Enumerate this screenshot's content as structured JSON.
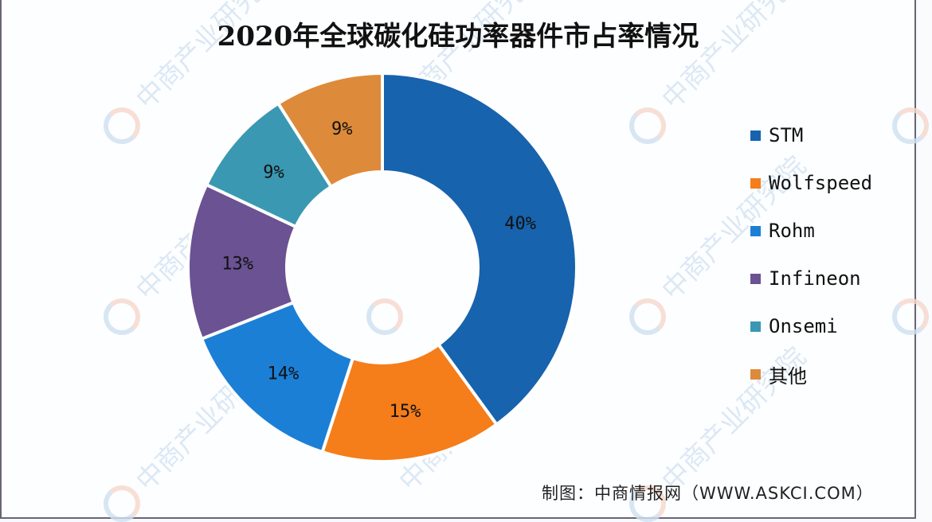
{
  "chart_data": {
    "type": "pie",
    "subtype": "donut",
    "title": "2020年全球碳化硅功率器件市占率情况",
    "categories": [
      "STM",
      "Wolfspeed",
      "Rohm",
      "Infineon",
      "Onsemi",
      "其他"
    ],
    "values": [
      40,
      15,
      14,
      13,
      9,
      9
    ],
    "labels": [
      "40%",
      "15%",
      "14%",
      "13%",
      "9%",
      "9%"
    ],
    "colors": [
      "#1763ad",
      "#f57d1a",
      "#1b7fd6",
      "#6a5293",
      "#3a98b2",
      "#dd8a3a"
    ],
    "unit": "%",
    "legend_position": "right",
    "start_angle": "12 o'clock, clockwise"
  },
  "title": "2020年全球碳化硅功率器件市占率情况",
  "legend": [
    {
      "label": "STM",
      "color": "#1763ad"
    },
    {
      "label": "Wolfspeed",
      "color": "#f57d1a"
    },
    {
      "label": "Rohm",
      "color": "#1b7fd6"
    },
    {
      "label": "Infineon",
      "color": "#6a5293"
    },
    {
      "label": "Onsemi",
      "color": "#3a98b2"
    },
    {
      "label": "其他",
      "color": "#dd8a3a"
    }
  ],
  "source": "制图：中商情报网（WWW.ASKCI.COM）",
  "watermark": "中商产业研究院"
}
